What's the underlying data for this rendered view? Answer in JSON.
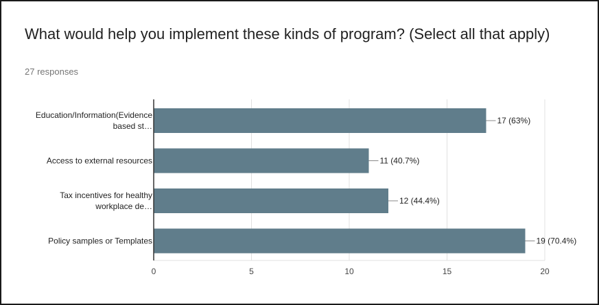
{
  "header": {
    "title": "What would help you implement these kinds of program? (Select all that apply)",
    "responses": "27 responses"
  },
  "colors": {
    "bar": "#607d8b",
    "gridline": "#e0e0e0",
    "axis": "#333333",
    "leader": "#888888"
  },
  "chart_data": {
    "type": "bar",
    "orientation": "horizontal",
    "categories": [
      [
        "Education/Information(Evidence",
        "based st…"
      ],
      [
        "Access to external resources"
      ],
      [
        "Tax incentives for healthy",
        "workplace de…"
      ],
      [
        "Policy samples or Templates"
      ]
    ],
    "values": [
      17,
      11,
      12,
      19
    ],
    "data_labels": [
      "17 (63%)",
      "11 (40.7%)",
      "12 (44.4%)",
      "19 (70.4%)"
    ],
    "xlim": [
      0,
      20
    ],
    "xticks": [
      0,
      5,
      10,
      15,
      20
    ],
    "grid": true
  }
}
